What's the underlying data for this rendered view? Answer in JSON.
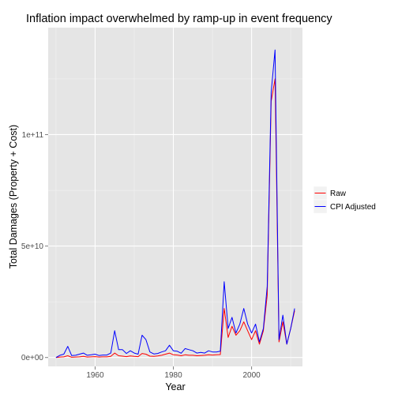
{
  "chart_data": {
    "type": "line",
    "title": "Inflation impact overwhelmed by ramp-up in event frequency",
    "xlabel": "Year",
    "ylabel": "Total Damages (Property + Cost)",
    "xlim": [
      1948,
      2013
    ],
    "ylim": [
      -4000000000,
      148000000000
    ],
    "x_ticks": [
      {
        "value": 1960,
        "label": "1960"
      },
      {
        "value": 1980,
        "label": "1980"
      },
      {
        "value": 2000,
        "label": "2000"
      }
    ],
    "y_ticks": [
      {
        "value": 0,
        "label": "0e+00"
      },
      {
        "value": 50000000000,
        "label": "5e+10"
      },
      {
        "value": 100000000000,
        "label": "1e+11"
      }
    ],
    "x": [
      1950,
      1951,
      1952,
      1953,
      1954,
      1955,
      1956,
      1957,
      1958,
      1959,
      1960,
      1961,
      1962,
      1963,
      1964,
      1965,
      1966,
      1967,
      1968,
      1969,
      1970,
      1971,
      1972,
      1973,
      1974,
      1975,
      1976,
      1977,
      1978,
      1979,
      1980,
      1981,
      1982,
      1983,
      1984,
      1985,
      1986,
      1987,
      1988,
      1989,
      1990,
      1991,
      1992,
      1993,
      1994,
      1995,
      1996,
      1997,
      1998,
      1999,
      2000,
      2001,
      2002,
      2003,
      2004,
      2005,
      2006,
      2007,
      2008,
      2009,
      2010,
      2011
    ],
    "series": [
      {
        "name": "Raw",
        "color": "#ff0000",
        "values": [
          0,
          200000000,
          300000000,
          800000000,
          100000000,
          200000000,
          300000000,
          500000000,
          200000000,
          300000000,
          400000000,
          200000000,
          300000000,
          300000000,
          500000000,
          2000000000,
          800000000,
          600000000,
          400000000,
          700000000,
          500000000,
          400000000,
          1800000000,
          1500000000,
          600000000,
          500000000,
          700000000,
          1000000000,
          1500000000,
          2000000000,
          1200000000,
          1100000000,
          800000000,
          1200000000,
          1000000000,
          1000000000,
          800000000,
          900000000,
          1000000000,
          1200000000,
          1100000000,
          1200000000,
          1300000000,
          22000000000,
          9000000000,
          14000000000,
          10000000000,
          12000000000,
          16000000000,
          12000000000,
          8000000000,
          12000000000,
          6000000000,
          12000000000,
          28000000000,
          115000000000,
          125000000000,
          7000000000,
          16000000000,
          6000000000,
          13000000000,
          21000000000
        ]
      },
      {
        "name": "CPI Adjusted",
        "color": "#0000ff",
        "values": [
          0,
          1000000000,
          1500000000,
          5000000000,
          900000000,
          1000000000,
          1500000000,
          2000000000,
          1000000000,
          1200000000,
          1500000000,
          900000000,
          1100000000,
          1100000000,
          2000000000,
          12000000000,
          3500000000,
          3500000000,
          1800000000,
          3000000000,
          2000000000,
          1500000000,
          10000000000,
          8000000000,
          2500000000,
          1600000000,
          1800000000,
          2500000000,
          3000000000,
          5500000000,
          3000000000,
          2800000000,
          1900000000,
          4000000000,
          3500000000,
          3000000000,
          2000000000,
          2300000000,
          2000000000,
          3000000000,
          2500000000,
          2500000000,
          2800000000,
          34000000000,
          13000000000,
          18000000000,
          11000000000,
          15000000000,
          22000000000,
          15000000000,
          11000000000,
          15000000000,
          7000000000,
          13000000000,
          32000000000,
          119000000000,
          138000000000,
          8000000000,
          19000000000,
          6000000000,
          13000000000,
          22000000000
        ]
      }
    ],
    "legend_position": "right",
    "grid": true,
    "panel_background": "#e5e5e5",
    "grid_color": "#ffffff"
  }
}
